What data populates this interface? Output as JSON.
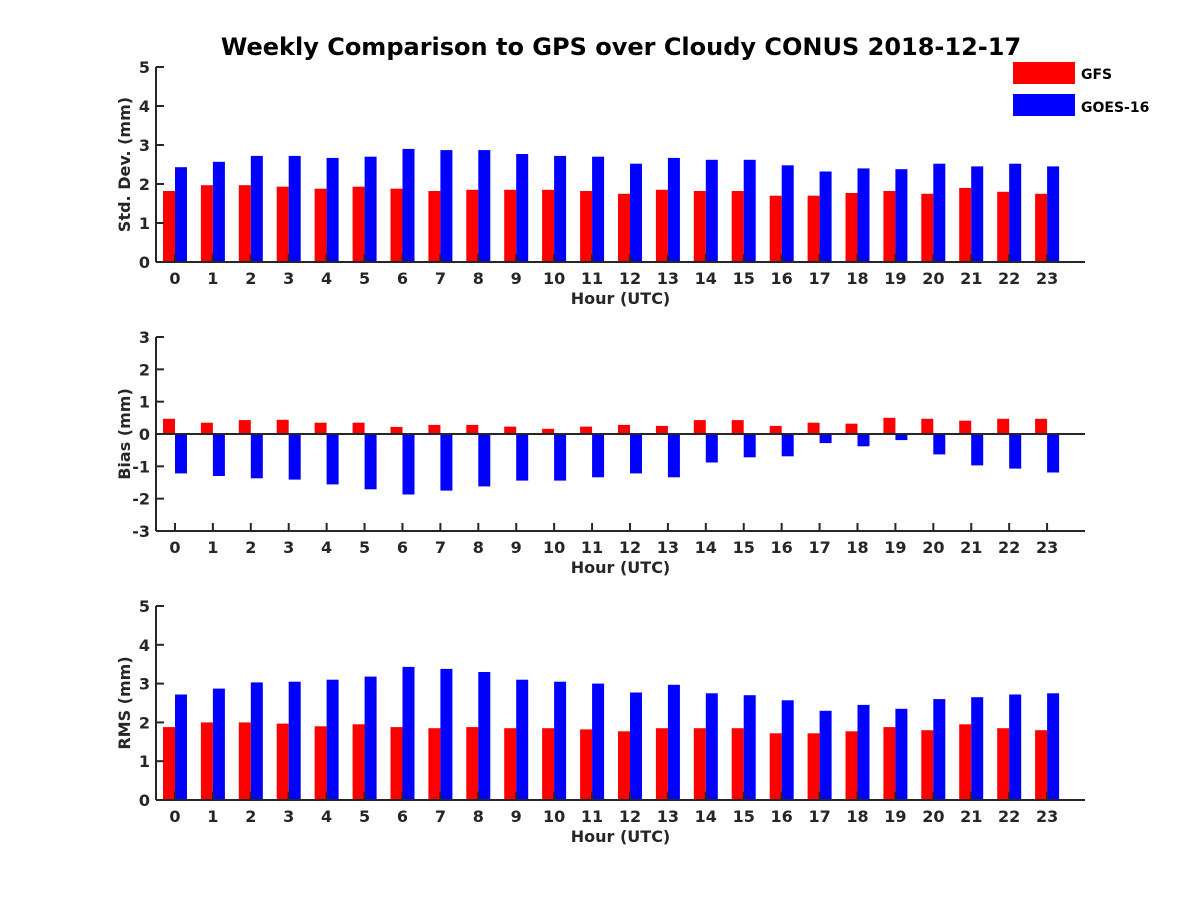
{
  "title": "Weekly Comparison to GPS over Cloudy CONUS 2018-12-17",
  "legend": {
    "position": "top-right",
    "items": [
      {
        "label": "GFS",
        "color": "#ff0000"
      },
      {
        "label": "GOES-16",
        "color": "#0000ff"
      }
    ]
  },
  "chart_data": [
    {
      "type": "bar",
      "ylabel": "Std. Dev. (mm)",
      "xlabel": "Hour (UTC)",
      "ylim": [
        0,
        5
      ],
      "yticks": [
        "0",
        "1",
        "2",
        "3",
        "4",
        "5"
      ],
      "categories": [
        "0",
        "1",
        "2",
        "3",
        "4",
        "5",
        "6",
        "7",
        "8",
        "9",
        "10",
        "11",
        "12",
        "13",
        "14",
        "15",
        "16",
        "17",
        "18",
        "19",
        "20",
        "21",
        "22",
        "23"
      ],
      "series": [
        {
          "name": "GFS",
          "color": "#ff0000",
          "values": [
            1.82,
            1.97,
            1.97,
            1.93,
            1.88,
            1.93,
            1.88,
            1.82,
            1.85,
            1.85,
            1.85,
            1.82,
            1.75,
            1.85,
            1.82,
            1.82,
            1.7,
            1.7,
            1.77,
            1.82,
            1.75,
            1.9,
            1.8,
            1.75
          ]
        },
        {
          "name": "GOES-16",
          "color": "#0000ff",
          "values": [
            2.43,
            2.57,
            2.72,
            2.72,
            2.67,
            2.7,
            2.9,
            2.87,
            2.87,
            2.77,
            2.72,
            2.7,
            2.52,
            2.67,
            2.62,
            2.62,
            2.48,
            2.32,
            2.4,
            2.38,
            2.52,
            2.45,
            2.52,
            2.45
          ]
        }
      ]
    },
    {
      "type": "bar",
      "ylabel": "Bias (mm)",
      "xlabel": "Hour (UTC)",
      "ylim": [
        -3,
        3
      ],
      "yticks": [
        "-3",
        "-2",
        "-1",
        "0",
        "1",
        "2",
        "3"
      ],
      "categories": [
        "0",
        "1",
        "2",
        "3",
        "4",
        "5",
        "6",
        "7",
        "8",
        "9",
        "10",
        "11",
        "12",
        "13",
        "14",
        "15",
        "16",
        "17",
        "18",
        "19",
        "20",
        "21",
        "22",
        "23"
      ],
      "series": [
        {
          "name": "GFS",
          "color": "#ff0000",
          "values": [
            0.47,
            0.35,
            0.43,
            0.44,
            0.35,
            0.35,
            0.22,
            0.28,
            0.28,
            0.23,
            0.16,
            0.23,
            0.28,
            0.25,
            0.43,
            0.43,
            0.25,
            0.35,
            0.32,
            0.5,
            0.47,
            0.41,
            0.47,
            0.47
          ]
        },
        {
          "name": "GOES-16",
          "color": "#0000ff",
          "values": [
            -1.22,
            -1.3,
            -1.37,
            -1.41,
            -1.56,
            -1.71,
            -1.87,
            -1.75,
            -1.62,
            -1.44,
            -1.44,
            -1.34,
            -1.22,
            -1.34,
            -0.88,
            -0.72,
            -0.69,
            -0.28,
            -0.38,
            -0.19,
            -0.63,
            -0.97,
            -1.07,
            -1.19
          ]
        }
      ]
    },
    {
      "type": "bar",
      "ylabel": "RMS (mm)",
      "xlabel": "Hour (UTC)",
      "ylim": [
        0,
        5
      ],
      "yticks": [
        "0",
        "1",
        "2",
        "3",
        "4",
        "5"
      ],
      "categories": [
        "0",
        "1",
        "2",
        "3",
        "4",
        "5",
        "6",
        "7",
        "8",
        "9",
        "10",
        "11",
        "12",
        "13",
        "14",
        "15",
        "16",
        "17",
        "18",
        "19",
        "20",
        "21",
        "22",
        "23"
      ],
      "series": [
        {
          "name": "GFS",
          "color": "#ff0000",
          "values": [
            1.88,
            2.0,
            2.0,
            1.97,
            1.9,
            1.95,
            1.88,
            1.85,
            1.88,
            1.85,
            1.85,
            1.82,
            1.77,
            1.85,
            1.85,
            1.85,
            1.72,
            1.72,
            1.77,
            1.88,
            1.8,
            1.95,
            1.85,
            1.8
          ]
        },
        {
          "name": "GOES-16",
          "color": "#0000ff",
          "values": [
            2.72,
            2.87,
            3.03,
            3.05,
            3.1,
            3.18,
            3.43,
            3.38,
            3.3,
            3.1,
            3.05,
            3.0,
            2.77,
            2.97,
            2.75,
            2.7,
            2.57,
            2.3,
            2.45,
            2.35,
            2.6,
            2.65,
            2.72,
            2.75
          ]
        }
      ]
    }
  ]
}
